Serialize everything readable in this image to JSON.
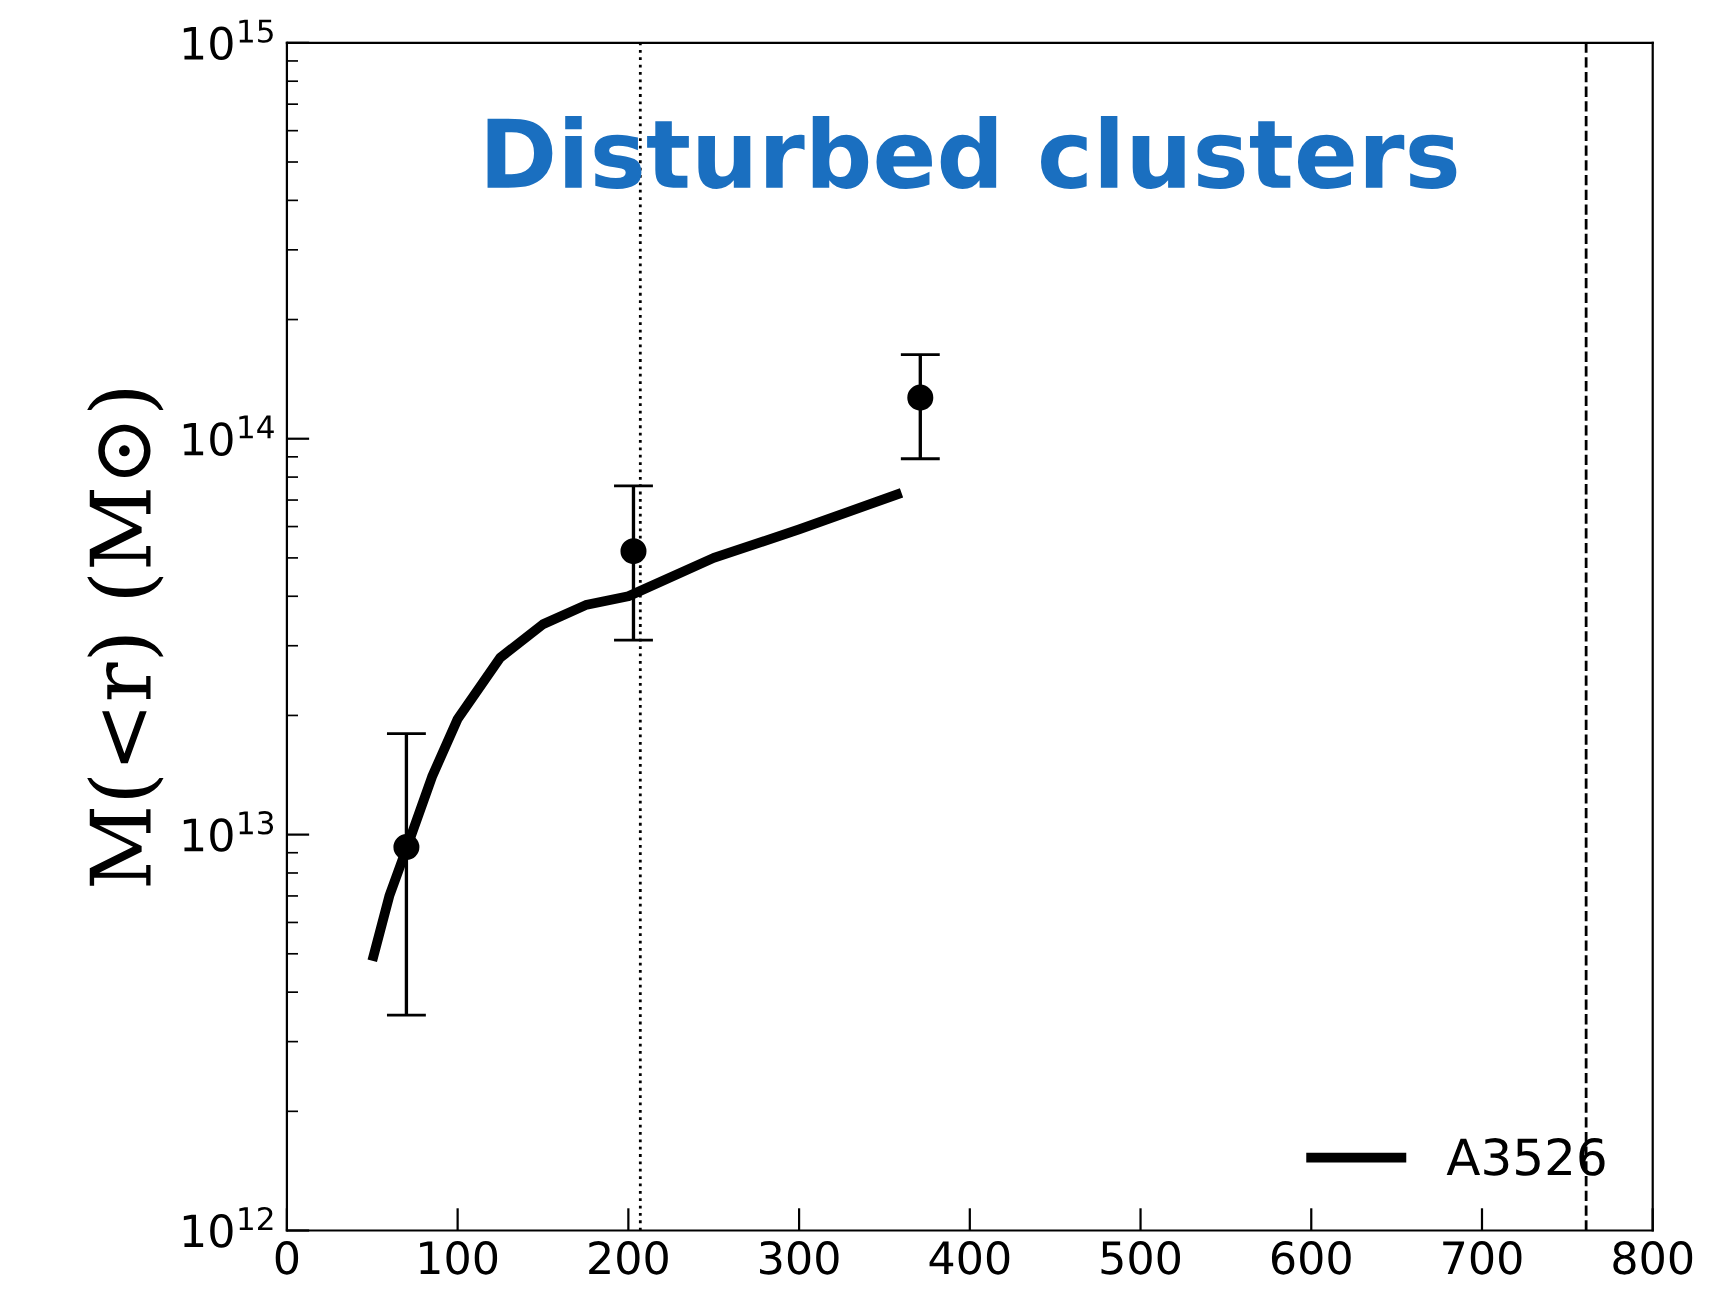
{
  "chart_data": {
    "type": "scatter",
    "title": "Disturbed clusters",
    "ylabel": "M(<r) (M⊙)",
    "log": "y",
    "xlim": [
      0,
      800
    ],
    "xticks": [
      0,
      100,
      200,
      300,
      400,
      500,
      600,
      700,
      800
    ],
    "ylim": [
      1000000000000.0,
      1000000000000000.0
    ],
    "yticks": [
      {
        "value": 1000000000000.0,
        "label": "10$^{12}$"
      },
      {
        "value": 10000000000000.0,
        "label": "10$^{13}$"
      },
      {
        "value": 100000000000000.0,
        "label": "10$^{14}$"
      },
      {
        "value": 1000000000000000.0,
        "label": "10$^{15}$"
      }
    ],
    "grid": false,
    "legend": "bottom right",
    "series": [
      {
        "color": "#000000",
        "marker": "circle",
        "x": [
          70,
          203,
          371
        ],
        "values": [
          9300000000000.0,
          52000000000000.0,
          127000000000000.0
        ],
        "errors": [
          [
            3500000000000.0,
            18000000000000.0
          ],
          [
            31000000000000.0,
            76000000000000.0
          ],
          [
            89000000000000.0,
            163000000000000.0
          ]
        ]
      },
      {
        "type": "line",
        "name": "A3526",
        "color": "#000000",
        "line_style": "solid",
        "x": [
          50,
          60,
          70,
          85,
          100,
          125,
          150,
          175,
          200,
          250,
          300,
          360
        ],
        "values": [
          4800000000000.0,
          7000000000000.0,
          9200000000000.0,
          14000000000000.0,
          19600000000000.0,
          28000000000000.0,
          34000000000000.0,
          38000000000000.0,
          40000000000000.0,
          50000000000000.0,
          59000000000000.0,
          73000000000000.0
        ]
      }
    ],
    "ref_lines": [
      {
        "axis": "x",
        "value": 207,
        "line_style": "dotted",
        "color": "#000000"
      },
      {
        "axis": "x",
        "value": 761,
        "line_style": "dashed",
        "color": "#000000"
      }
    ]
  }
}
